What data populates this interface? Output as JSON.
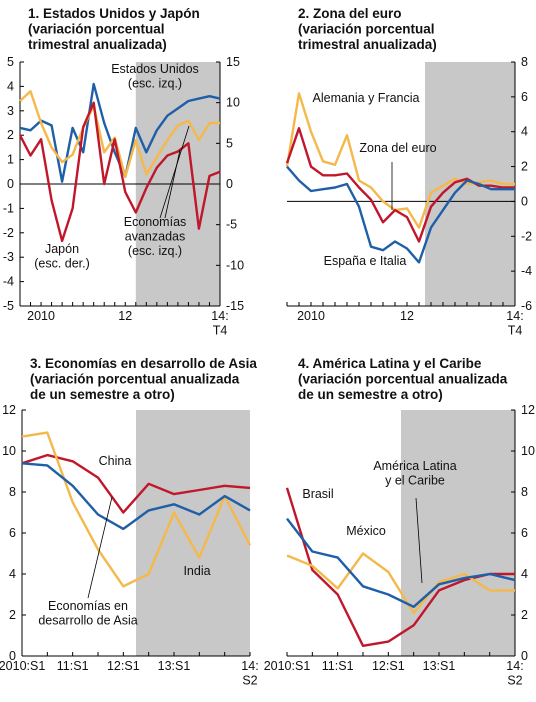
{
  "chart_data": [
    {
      "type": "line",
      "title": "1. Estados Unidos y Japón\n(variación porcentual\ntrimestral anualizada)",
      "categories": [
        null,
        null,
        "2010",
        null,
        null,
        null,
        null,
        null,
        null,
        null,
        "12",
        null,
        null,
        null,
        null,
        null,
        null,
        null,
        null,
        "14:\nT4"
      ],
      "series": [
        {
          "name": "Estados Unidos\n(esc. izq.)",
          "color": "#1f5fa8",
          "values": [
            2.3,
            2.2,
            2.6,
            2.4,
            0.1,
            2.3,
            1.3,
            4.1,
            2.5,
            1.3,
            0.3,
            2.3,
            1.3,
            2.2,
            2.8,
            3.1,
            3.4,
            3.5,
            3.6,
            3.5
          ]
        },
        {
          "name": "Economías\navanzadas\n(esc. izq.)",
          "color": "#f5b84a",
          "values": [
            3.4,
            3.8,
            2.5,
            1.5,
            0.9,
            1.2,
            2.3,
            3.2,
            1.3,
            1.9,
            0.3,
            1.8,
            0.4,
            1.1,
            1.8,
            2.4,
            2.6,
            1.8,
            2.5,
            2.5
          ]
        },
        {
          "name": "Japón\n(esc. der.)",
          "color": "#c0172b",
          "axis": "y2",
          "values": [
            6,
            3.5,
            5.5,
            -2,
            -7,
            -3,
            7,
            10,
            0,
            5.5,
            -1,
            -3.5,
            -0.5,
            2,
            3.5,
            4,
            5,
            -5.5,
            1,
            1.5
          ]
        }
      ],
      "ylim": [
        -5,
        5
      ],
      "yticks": [
        -5,
        -4,
        -3,
        -2,
        -1,
        0,
        1,
        2,
        3,
        4,
        5
      ],
      "y2lim": [
        -15,
        15
      ],
      "y2ticks": [
        -15,
        -10,
        -5,
        0,
        5,
        10,
        15
      ],
      "shaded_from": 11,
      "zero_line": true
    },
    {
      "type": "line",
      "title": "2. Zona del euro\n(variación porcentual\ntrimestral anualizada)",
      "categories": [
        null,
        null,
        "2010",
        null,
        null,
        null,
        null,
        null,
        null,
        null,
        "12",
        null,
        null,
        null,
        null,
        null,
        null,
        null,
        null,
        "14:\nT4"
      ],
      "series": [
        {
          "name": "Alemania y Francia",
          "color": "#f5b84a",
          "axis": "y2",
          "values": [
            2,
            6.2,
            4,
            2.3,
            2.1,
            3.8,
            1.2,
            0.8,
            0,
            -0.5,
            -0.4,
            -1.5,
            0.5,
            0.9,
            1.3,
            1.0,
            1.1,
            1.2,
            1.0,
            1.0
          ]
        },
        {
          "name": "Zona del euro",
          "color": "#c0172b",
          "axis": "y2",
          "values": [
            2.2,
            4.2,
            2,
            1.5,
            1.5,
            1.6,
            0.8,
            0.1,
            -1.2,
            -0.5,
            -0.9,
            -2.3,
            -0.3,
            0.5,
            1.1,
            1.3,
            0.9,
            0.9,
            0.8,
            0.8
          ]
        },
        {
          "name": "España e Italia",
          "color": "#1f5fa8",
          "axis": "y2",
          "values": [
            2,
            1.2,
            0.6,
            0.7,
            0.8,
            1,
            -0.3,
            -2.6,
            -2.8,
            -2.3,
            -2.7,
            -3.5,
            -1.5,
            -0.5,
            0.5,
            1.2,
            1,
            0.7,
            0.7,
            0.7
          ]
        }
      ],
      "y2lim": [
        -6,
        8
      ],
      "y2ticks": [
        -6,
        -4,
        -2,
        0,
        2,
        4,
        6,
        8
      ],
      "shaded_from": 11.5,
      "zero_line": true
    },
    {
      "type": "line",
      "title": "3. Economías en desarrollo de Asia\n(variación porcentual anualizada\nde un semestre a otro)",
      "categories": [
        "2010:S1",
        null,
        "11:S1",
        null,
        "12:S1",
        null,
        "13:S1",
        null,
        null,
        "14:\nS2"
      ],
      "series": [
        {
          "name": "China",
          "color": "#c0172b",
          "values": [
            9.4,
            9.8,
            9.5,
            8.7,
            7.0,
            8.4,
            7.9,
            8.1,
            8.3,
            8.2
          ]
        },
        {
          "name": "India",
          "color": "#f5b84a",
          "values": [
            10.7,
            10.9,
            7.5,
            5.2,
            3.4,
            4.0,
            7.0,
            4.8,
            7.8,
            5.4
          ]
        },
        {
          "name": "Economías en\ndesarrollo de Asia",
          "color": "#1f5fa8",
          "values": [
            9.4,
            9.3,
            8.3,
            6.9,
            6.2,
            7.1,
            7.4,
            6.9,
            7.8,
            7.1
          ]
        }
      ],
      "ylim": [
        0,
        12
      ],
      "yticks": [
        0,
        2,
        4,
        6,
        8,
        10,
        12
      ],
      "shaded_from": 4.5
    },
    {
      "type": "line",
      "title": "4. América Latina y el Caribe\n(variación porcentual anualizada\nde un semestre a otro)",
      "categories": [
        "2010:S1",
        null,
        "11:S1",
        null,
        "12:S1",
        null,
        "13:S1",
        null,
        null,
        "14:\nS2"
      ],
      "series": [
        {
          "name": "Brasil",
          "color": "#c0172b",
          "axis": "y2",
          "values": [
            8.2,
            4.2,
            3.0,
            0.5,
            0.7,
            1.5,
            3.2,
            3.7,
            4.0,
            4.0
          ]
        },
        {
          "name": "México",
          "color": "#f5b84a",
          "axis": "y2",
          "values": [
            4.9,
            4.4,
            3.3,
            5.0,
            4.1,
            2.1,
            3.6,
            4.0,
            3.2,
            3.2
          ]
        },
        {
          "name": "América Latina\ny el Caribe",
          "color": "#1f5fa8",
          "axis": "y2",
          "values": [
            6.7,
            5.1,
            4.8,
            3.4,
            3.0,
            2.4,
            3.5,
            3.8,
            4.0,
            3.7
          ]
        }
      ],
      "y2lim": [
        0,
        12
      ],
      "y2ticks": [
        0,
        2,
        4,
        6,
        8,
        10,
        12
      ],
      "shaded_from": 4.5
    }
  ]
}
